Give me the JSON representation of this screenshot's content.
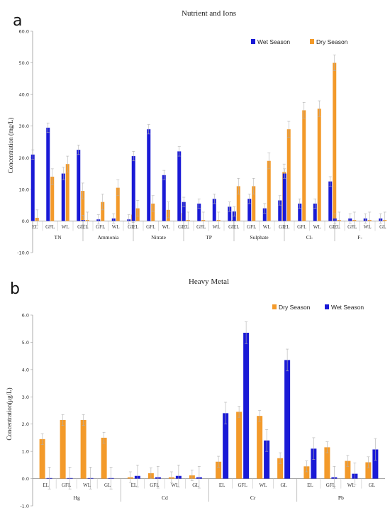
{
  "chart_data": [
    {
      "panel": "a",
      "type": "bar",
      "title": "Nutrient and Ions",
      "ylabel": "Concentration (mg/L)",
      "ylim": [
        -10,
        60
      ],
      "yticks": [
        "60.0",
        "50.0",
        "40.0",
        "30.0",
        "20.0",
        "10.0",
        "0.0",
        "-10.0"
      ],
      "legend_position": "top-right",
      "groups": [
        "TN",
        "Ammonia",
        "Nitrate",
        "TP",
        "Sulphate",
        "Cl-",
        "F-"
      ],
      "sites": [
        "EL",
        "GFL",
        "WL",
        "GL"
      ],
      "series": [
        {
          "name": "Wet Season",
          "color": "#1a1ad6",
          "values": [
            [
              21,
              29.5,
              15,
              22.5
            ],
            [
              0.3,
              0.5,
              0.8,
              0.5
            ],
            [
              20.5,
              29,
              14.5,
              22
            ],
            [
              6,
              5.5,
              7,
              4.5
            ],
            [
              3,
              7,
              4,
              6.5
            ],
            [
              15,
              5.5,
              5.5,
              12.5
            ],
            [
              0.8,
              0.8,
              0.8,
              0.8
            ]
          ],
          "errors": [
            [
              1.5,
              1.5,
              2,
              1.5
            ],
            [
              1.5,
              1.5,
              1.5,
              1.5
            ],
            [
              1.5,
              1.5,
              1.5,
              1.5
            ],
            [
              1.5,
              1.5,
              1.5,
              1.5
            ],
            [
              1.5,
              1.5,
              1.5,
              1.5
            ],
            [
              1.5,
              1.5,
              1.5,
              1.5
            ],
            [
              1.5,
              1.5,
              1.5,
              1.5
            ]
          ]
        },
        {
          "name": "Dry Season",
          "color": "#f39a2a",
          "values": [
            [
              1,
              14,
              18,
              9.5
            ],
            [
              0.3,
              6,
              10.5,
              2
            ],
            [
              4,
              5.5,
              3.5,
              2.5
            ],
            [
              0.3,
              0.3,
              0.3,
              0.3
            ],
            [
              11,
              11,
              19,
              15.5
            ],
            [
              29,
              35,
              35.5,
              50
            ],
            [
              0.3,
              0.3,
              0.3,
              0.3
            ]
          ],
          "errors": [
            [
              2.5,
              2.5,
              2.5,
              2.5
            ],
            [
              2.5,
              2.5,
              2.5,
              2.5
            ],
            [
              2.5,
              2.5,
              2.5,
              2.5
            ],
            [
              2.5,
              2.5,
              2.5,
              2.5
            ],
            [
              2.5,
              2.5,
              2.5,
              2.5
            ],
            [
              2.5,
              2.5,
              2.5,
              2.5
            ],
            [
              2.5,
              2.5,
              2.5,
              2.5
            ]
          ]
        }
      ]
    },
    {
      "panel": "b",
      "type": "bar",
      "title": "Heavy Metal",
      "ylabel": "Concentration(μg/L)",
      "ylim": [
        -1,
        6
      ],
      "yticks": [
        "6.0",
        "5.0",
        "4.0",
        "3.0",
        "2.0",
        "1.0",
        "0.0",
        "-1.0"
      ],
      "legend_position": "top-right",
      "groups": [
        "Hg",
        "Cd",
        "Cr",
        "Pb"
      ],
      "sites": [
        "EL",
        "GFL",
        "WL",
        "GL"
      ],
      "series": [
        {
          "name": "Dry Season",
          "color": "#f39a2a",
          "values": [
            [
              1.45,
              2.15,
              2.15,
              1.5
            ],
            [
              0.05,
              0.2,
              0.05,
              0.12
            ],
            [
              0.62,
              2.45,
              2.3,
              0.75
            ],
            [
              0.45,
              1.15,
              0.65,
              0.6
            ]
          ],
          "errors": [
            [
              0.2,
              0.2,
              0.2,
              0.2
            ],
            [
              0.2,
              0.2,
              0.2,
              0.2
            ],
            [
              0.2,
              0.2,
              0.2,
              0.2
            ],
            [
              0.2,
              0.2,
              0.2,
              0.2
            ]
          ]
        },
        {
          "name": "Wet Season",
          "color": "#1a1ad6",
          "values": [
            [
              0.02,
              0.02,
              0.02,
              0.02
            ],
            [
              0.1,
              0.05,
              0.1,
              0.05
            ],
            [
              2.4,
              5.35,
              1.4,
              4.35
            ],
            [
              1.1,
              0.05,
              0.18,
              1.07
            ]
          ],
          "errors": [
            [
              0.4,
              0.4,
              0.4,
              0.4
            ],
            [
              0.4,
              0.4,
              0.4,
              0.4
            ],
            [
              0.4,
              0.4,
              0.4,
              0.4
            ],
            [
              0.4,
              0.4,
              0.4,
              0.4
            ]
          ]
        }
      ]
    }
  ]
}
